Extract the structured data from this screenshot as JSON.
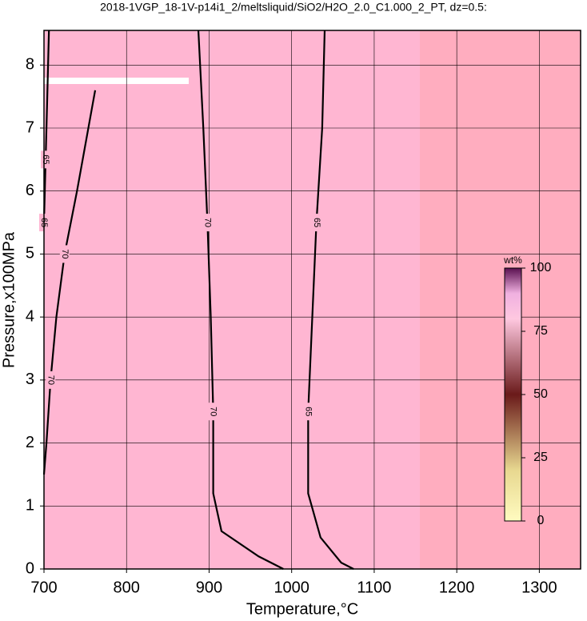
{
  "chart_data": {
    "type": "contour",
    "title": "2018-1VGP_18-1V-p14i1_2/meltsliquid/SiO2/H2O_2.0_C1.000_2_PT, dz=0.5:",
    "x_label": "Temperature,°C",
    "y_label": "Pressure,x100MPa",
    "xlim": [
      700,
      1350
    ],
    "ylim": [
      0,
      8.55
    ],
    "xticks": [
      700,
      800,
      900,
      1000,
      1100,
      1200,
      1300
    ],
    "yticks": [
      0,
      1,
      2,
      3,
      4,
      5,
      6,
      7,
      8
    ],
    "grid": true,
    "colorbar": {
      "label": "wt%",
      "lim": [
        0,
        100
      ],
      "ticks": [
        0,
        25,
        50,
        75,
        100
      ]
    },
    "contours": [
      {
        "level": 70,
        "x": [
          887,
          893,
          898,
          902,
          905,
          905,
          915,
          960,
          990
        ],
        "y": [
          8.55,
          7,
          5.5,
          4,
          2.5,
          1.2,
          0.6,
          0.2,
          0
        ]
      },
      {
        "level": 65,
        "x": [
          1040,
          1037,
          1030,
          1025,
          1020,
          1020,
          1035,
          1060,
          1075
        ],
        "y": [
          8.55,
          7,
          5.5,
          4,
          2.5,
          1.2,
          0.5,
          0.1,
          0
        ]
      },
      {
        "level": 70,
        "x": [
          762,
          740,
          725,
          715,
          708,
          703,
          700
        ],
        "y": [
          7.6,
          6,
          5,
          4,
          3,
          2,
          1.5
        ]
      },
      {
        "level": 65,
        "x": [
          706,
          704,
          702,
          701,
          700
        ],
        "y": [
          8.55,
          7.5,
          6.5,
          6,
          5.5
        ]
      }
    ]
  }
}
